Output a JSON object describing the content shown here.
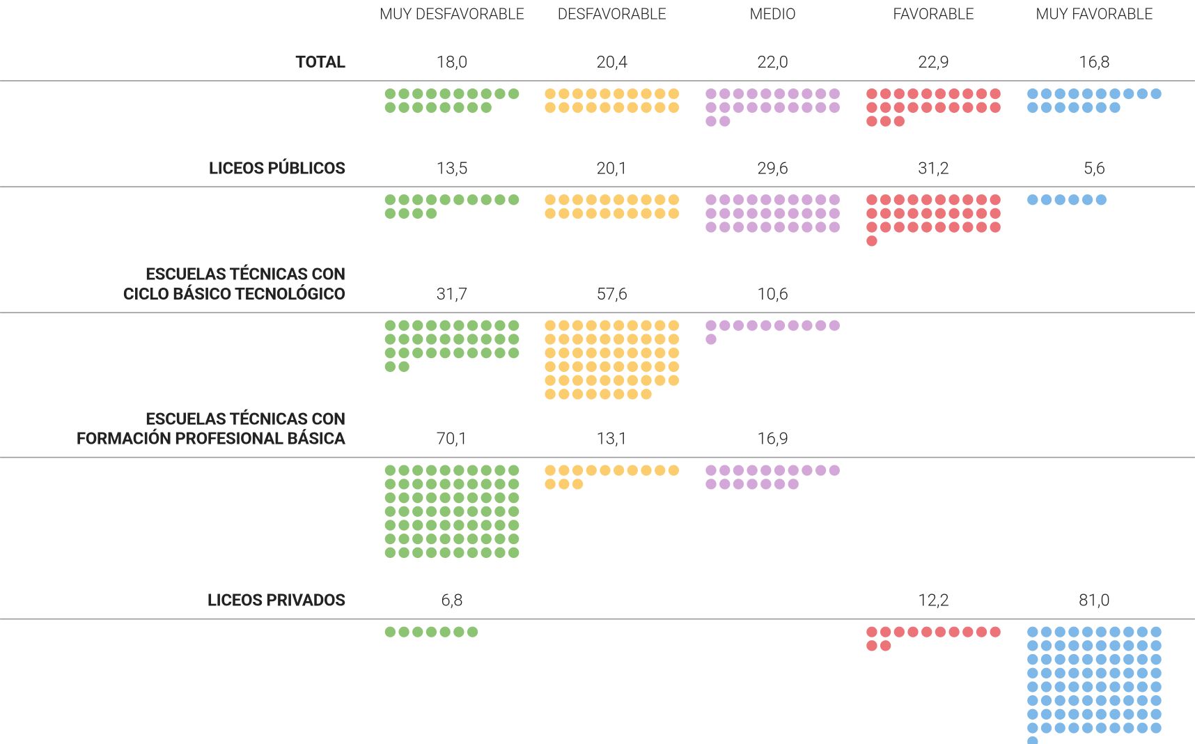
{
  "chart_data": {
    "type": "waffle",
    "categories": [
      "MUY DESFAVORABLE",
      "DESFAVORABLE",
      "MEDIO",
      "FAVORABLE",
      "MUY FAVORABLE"
    ],
    "colors": [
      "#8dc473",
      "#fbcd6e",
      "#d3a8d8",
      "#ec7378",
      "#7db8e8"
    ],
    "series": [
      {
        "name": [
          "TOTAL"
        ],
        "values": [
          18.0,
          20.4,
          22.0,
          22.9,
          16.8
        ],
        "value_labels": [
          "18,0",
          "20,4",
          "22,0",
          "22,9",
          "16,8"
        ]
      },
      {
        "name": [
          "LICEOS PÚBLICOS"
        ],
        "values": [
          13.5,
          20.1,
          29.6,
          31.2,
          5.6
        ],
        "value_labels": [
          "13,5",
          "20,1",
          "29,6",
          "31,2",
          "5,6"
        ]
      },
      {
        "name": [
          "ESCUELAS TÉCNICAS CON",
          "CICLO BÁSICO TECNOLÓGICO"
        ],
        "values": [
          31.7,
          57.6,
          10.6,
          null,
          null
        ],
        "value_labels": [
          "31,7",
          "57,6",
          "10,6",
          null,
          null
        ]
      },
      {
        "name": [
          "ESCUELAS TÉCNICAS CON",
          "FORMACIÓN PROFESIONAL BÁSICA"
        ],
        "values": [
          70.1,
          13.1,
          16.9,
          null,
          null
        ],
        "value_labels": [
          "70,1",
          "13,1",
          "16,9",
          null,
          null
        ]
      },
      {
        "name": [
          "LICEOS PRIVADOS"
        ],
        "values": [
          6.8,
          null,
          null,
          12.2,
          81.0
        ],
        "value_labels": [
          "6,8",
          null,
          null,
          "12,2",
          "81,0"
        ]
      }
    ]
  }
}
